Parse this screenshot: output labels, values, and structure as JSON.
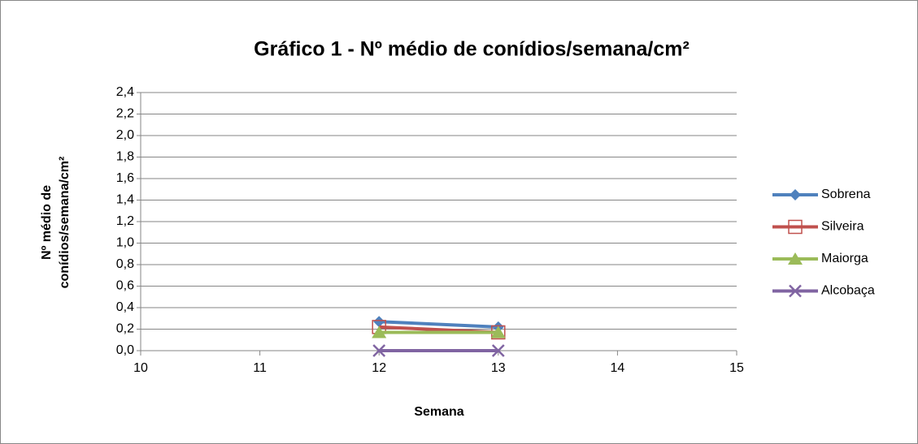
{
  "chart_data": {
    "type": "line",
    "title": "Gráfico 1  - Nº médio de conídios/semana/cm²",
    "xlabel": "Semana",
    "ylabel": [
      "Nº médio de",
      "conídios/semana/cm²"
    ],
    "x": [
      12,
      13
    ],
    "series": [
      {
        "name": "Sobrena",
        "color": "#4F81BD",
        "marker": "diamond",
        "values": [
          0.27,
          0.22
        ]
      },
      {
        "name": "Silveira",
        "color": "#C0504D",
        "marker": "square",
        "values": [
          0.22,
          0.17
        ]
      },
      {
        "name": "Maiorga",
        "color": "#9BBB59",
        "marker": "triangle",
        "values": [
          0.17,
          0.17
        ]
      },
      {
        "name": "Alcobaça",
        "color": "#8064A2",
        "marker": "x",
        "values": [
          0,
          0
        ]
      }
    ],
    "xlim": [
      10,
      15
    ],
    "xticks": [
      10,
      11,
      12,
      13,
      14,
      15
    ],
    "ylim": [
      0,
      2.4
    ],
    "yticks": [
      {
        "value": 0,
        "label": "0,0"
      },
      {
        "value": 0.2,
        "label": "0,2"
      },
      {
        "value": 0.4,
        "label": "0,4"
      },
      {
        "value": 0.6,
        "label": "0,6"
      },
      {
        "value": 0.8,
        "label": "0,8"
      },
      {
        "value": 1.0,
        "label": "1,0"
      },
      {
        "value": 1.2,
        "label": "1,2"
      },
      {
        "value": 1.4,
        "label": "1,4"
      },
      {
        "value": 1.6,
        "label": "1,6"
      },
      {
        "value": 1.8,
        "label": "1,8"
      },
      {
        "value": 2.0,
        "label": "2,0"
      },
      {
        "value": 2.2,
        "label": "2,2"
      },
      {
        "value": 2.4,
        "label": "2,4"
      }
    ],
    "grid": true,
    "legend": "right"
  }
}
